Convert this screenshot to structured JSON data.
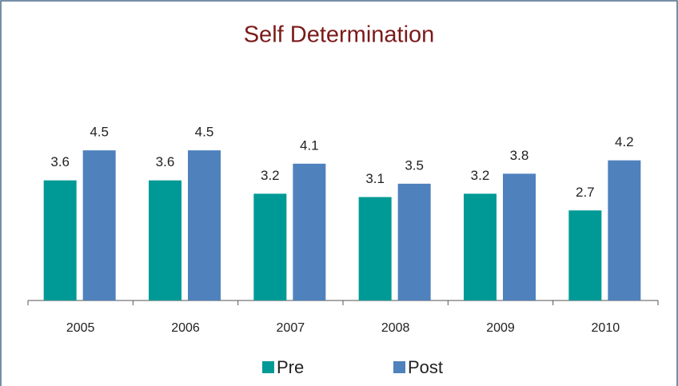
{
  "chart_data": {
    "type": "bar",
    "title": "Self Determination",
    "categories": [
      "2005",
      "2006",
      "2007",
      "2008",
      "2009",
      "2010"
    ],
    "series": [
      {
        "name": "Pre",
        "color": "#009a96",
        "values": [
          3.6,
          3.6,
          3.2,
          3.1,
          3.2,
          2.7
        ]
      },
      {
        "name": "Post",
        "color": "#4f81bd",
        "values": [
          4.5,
          4.5,
          4.1,
          3.5,
          3.8,
          4.2
        ]
      }
    ],
    "ylim": [
      0,
      8
    ]
  }
}
